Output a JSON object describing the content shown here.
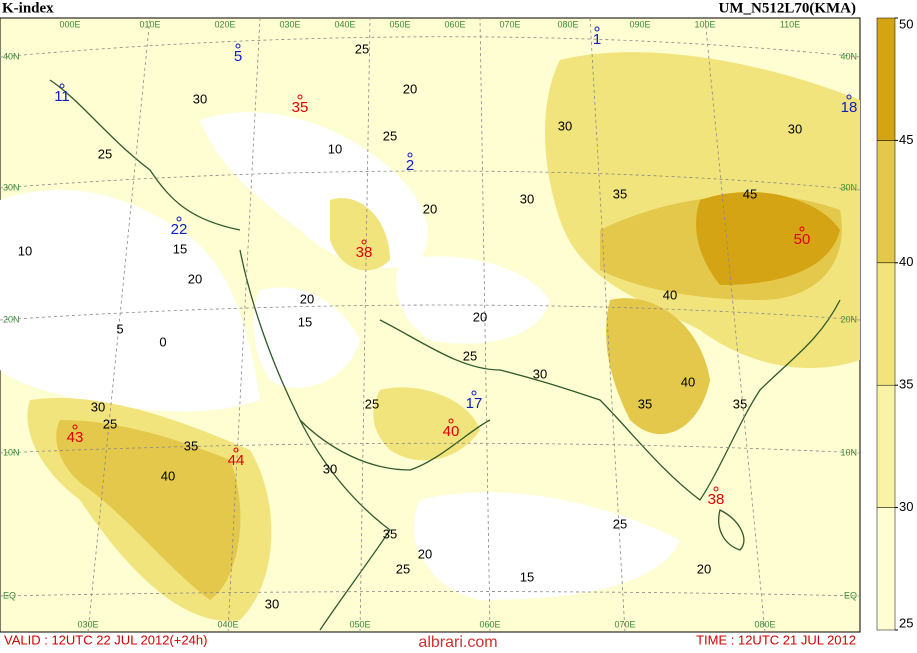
{
  "header": {
    "title": "K-index",
    "model": "UM_N512L70(KMA)"
  },
  "colorbar": {
    "ticks": [
      25,
      30,
      35,
      40,
      45,
      50
    ],
    "colors": [
      "#fffdd2",
      "#f9f3a6",
      "#f1e47c",
      "#e4c84c",
      "#d4a414"
    ]
  },
  "map": {
    "lat_labels": [
      "40N",
      "30N",
      "20N",
      "10N",
      "EQ"
    ],
    "lon_labels_top": [
      "000E",
      "010E",
      "020E",
      "030E",
      "040E",
      "050E",
      "060E",
      "070E",
      "080E",
      "090E",
      "100E",
      "110E"
    ],
    "lon_labels_bottom": [
      "030E",
      "040E",
      "050E",
      "060E",
      "070E",
      "080E"
    ],
    "contour_labels": [
      25,
      20,
      30,
      10,
      25,
      20,
      30,
      35,
      45,
      40,
      40,
      35,
      35,
      20,
      15,
      20,
      20,
      15,
      5,
      0,
      10,
      25,
      35,
      40,
      30,
      30,
      25,
      30,
      25,
      25,
      20,
      15,
      20,
      25,
      35,
      30,
      30,
      30,
      25
    ],
    "maxima": [
      35,
      38,
      43,
      44,
      40,
      38,
      50
    ],
    "minima": [
      5,
      1,
      11,
      22,
      2,
      17,
      18
    ]
  },
  "footer": {
    "valid": "VALID : 12UTC 22 JUL 2012(+24h)",
    "watermark": "albrari.com",
    "time": "TIME : 12UTC 21 JUL 2012"
  }
}
